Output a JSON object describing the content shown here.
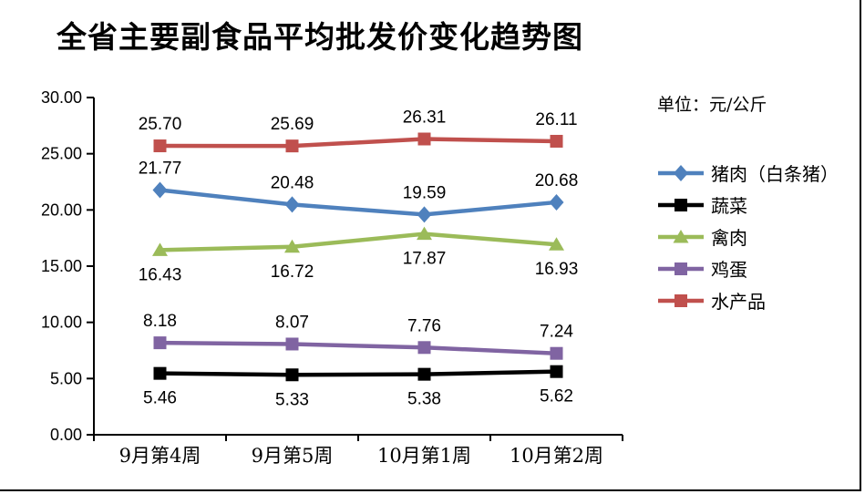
{
  "title": "全省主要副食品平均批发价变化趋势图",
  "unit_label": "单位：元/公斤",
  "chart_data": {
    "type": "line",
    "title": "全省主要副食品平均批发价变化趋势图",
    "xlabel": "",
    "ylabel": "",
    "unit": "元/公斤",
    "categories": [
      "9月第4周",
      "9月第5周",
      "10月第1周",
      "10月第2周"
    ],
    "ylim": [
      0,
      30
    ],
    "ytick_step": 5,
    "ytick_labels": [
      "0.00",
      "5.00",
      "10.00",
      "15.00",
      "20.00",
      "25.00",
      "30.00"
    ],
    "grid": false,
    "legend_position": "right",
    "value_decimals": 2,
    "series": [
      {
        "id": "pork",
        "name": "猪肉（白条猪）",
        "values": [
          21.77,
          20.48,
          19.59,
          20.68
        ],
        "color": "#4F81BD",
        "marker": "diamond",
        "label_position": "above"
      },
      {
        "id": "vegetable",
        "name": "蔬菜",
        "values": [
          5.46,
          5.33,
          5.38,
          5.62
        ],
        "color": "#000000",
        "marker": "square",
        "label_position": "below"
      },
      {
        "id": "poultry",
        "name": "禽肉",
        "values": [
          16.43,
          16.72,
          17.87,
          16.93
        ],
        "color": "#9BBB59",
        "marker": "triangle",
        "label_position": "below"
      },
      {
        "id": "egg",
        "name": "鸡蛋",
        "values": [
          8.18,
          8.07,
          7.76,
          7.24
        ],
        "color": "#8064A2",
        "marker": "square",
        "label_position": "above"
      },
      {
        "id": "aquatic",
        "name": "水产品",
        "values": [
          25.7,
          25.69,
          26.31,
          26.11
        ],
        "color": "#C0504D",
        "marker": "square",
        "label_position": "above"
      }
    ]
  }
}
